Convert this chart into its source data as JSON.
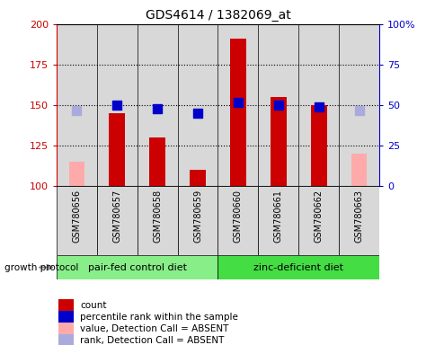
{
  "title": "GDS4614 / 1382069_at",
  "samples": [
    "GSM780656",
    "GSM780657",
    "GSM780658",
    "GSM780659",
    "GSM780660",
    "GSM780661",
    "GSM780662",
    "GSM780663"
  ],
  "count_values": [
    115,
    145,
    130,
    110,
    191,
    155,
    150,
    120
  ],
  "count_absent": [
    true,
    false,
    false,
    false,
    false,
    false,
    false,
    true
  ],
  "percentile_values": [
    47,
    50,
    48,
    45,
    52,
    50,
    49,
    47
  ],
  "percentile_absent": [
    true,
    false,
    false,
    false,
    false,
    false,
    false,
    true
  ],
  "groups": [
    {
      "label": "pair-fed control diet",
      "indices": [
        0,
        1,
        2,
        3
      ],
      "color": "#88ee88"
    },
    {
      "label": "zinc-deficient diet",
      "indices": [
        4,
        5,
        6,
        7
      ],
      "color": "#44dd44"
    }
  ],
  "group_label": "growth protocol",
  "ylim_left": [
    100,
    200
  ],
  "ylim_right": [
    0,
    100
  ],
  "yticks_left": [
    100,
    125,
    150,
    175,
    200
  ],
  "yticks_right": [
    0,
    25,
    50,
    75,
    100
  ],
  "ytick_labels_right": [
    "0",
    "25",
    "50",
    "75",
    "100%"
  ],
  "bar_color_present": "#cc0000",
  "bar_color_absent": "#ffaaaa",
  "dot_color_present": "#0000cc",
  "dot_color_absent": "#aaaadd",
  "bar_width": 0.4,
  "dot_size": 55,
  "grid_color": "#000000",
  "grid_style": "dotted",
  "cell_bg_color": "#d8d8d8",
  "legend_items": [
    {
      "label": "count",
      "color": "#cc0000"
    },
    {
      "label": "percentile rank within the sample",
      "color": "#0000cc"
    },
    {
      "label": "value, Detection Call = ABSENT",
      "color": "#ffaaaa"
    },
    {
      "label": "rank, Detection Call = ABSENT",
      "color": "#aaaadd"
    }
  ]
}
